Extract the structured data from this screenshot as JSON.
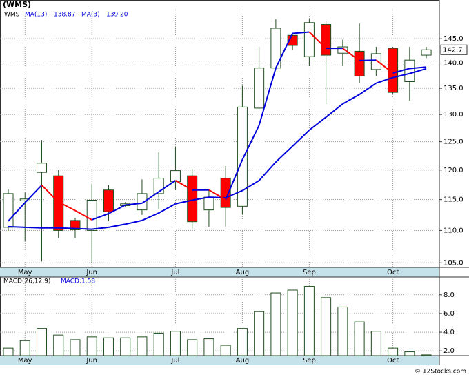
{
  "footer": "© 12Stocks.com",
  "chart_data": [
    {
      "type": "candlestick",
      "title": "(WMS)",
      "symbol": "WMS",
      "log_scale": true,
      "grid": true,
      "xlim": [
        -0.495,
        25.78
      ],
      "xticks": [
        {
          "value": 1,
          "label": "May"
        },
        {
          "value": 5,
          "label": "Jun"
        },
        {
          "value": 10,
          "label": "Jul"
        },
        {
          "value": 14,
          "label": "Aug"
        },
        {
          "value": 18,
          "label": "Sep"
        },
        {
          "value": 23,
          "label": "Oct"
        }
      ],
      "ylim": [
        104.3,
        151.2
      ],
      "yticks": [
        {
          "value": 105,
          "label": "105.0"
        },
        {
          "value": 110,
          "label": "110.0"
        },
        {
          "value": 115,
          "label": "115.0"
        },
        {
          "value": 120,
          "label": "120.0"
        },
        {
          "value": 125,
          "label": "125.0"
        },
        {
          "value": 130,
          "label": "130.0"
        },
        {
          "value": 135,
          "label": "135.0"
        },
        {
          "value": 140,
          "label": "140.0"
        },
        {
          "value": 145,
          "label": "145.0"
        }
      ],
      "up_color": "#ffffff",
      "down_color": "#ff0000",
      "edge_color": "#1f4f1f",
      "open": [
        110.5,
        114.8,
        119.6,
        119.0,
        111.6,
        110.0,
        116.6,
        114.0,
        113.3,
        116.0,
        118.0,
        119.0,
        113.3,
        118.6,
        113.9,
        131.2,
        139.0,
        145.7,
        141.3,
        148.0,
        142.0,
        142.4,
        138.7,
        143.0,
        136.3,
        141.6
      ],
      "high": [
        116.7,
        116.2,
        125.3,
        120.0,
        112.0,
        117.6,
        117.4,
        114.6,
        118.4,
        123.1,
        124.0,
        120.2,
        116.6,
        120.7,
        135.5,
        143.3,
        149.1,
        146.2,
        149.1,
        148.6,
        144.8,
        148.2,
        143.3,
        143.3,
        143.3,
        143.3
      ],
      "low": [
        110.0,
        108.3,
        105.2,
        108.8,
        108.8,
        105.0,
        111.5,
        113.7,
        112.5,
        113.4,
        116.6,
        110.3,
        110.6,
        110.6,
        112.6,
        131.0,
        139.0,
        142.7,
        139.4,
        131.9,
        139.4,
        136.1,
        137.4,
        133.9,
        132.6,
        141.0
      ],
      "close": [
        116.0,
        115.1,
        121.2,
        110.0,
        110.1,
        114.9,
        113.0,
        114.3,
        116.0,
        118.6,
        119.9,
        111.4,
        115.4,
        113.7,
        131.4,
        139.0,
        147.2,
        143.6,
        148.4,
        141.6,
        143.3,
        137.4,
        141.9,
        134.2,
        140.6,
        142.7
      ],
      "last_price": 142.7,
      "series": [
        {
          "name": "MA(13)",
          "value_label": "138.87",
          "color": "#0000dd",
          "values": [
            110.6,
            110.5,
            110.4,
            110.4,
            110.3,
            110.2,
            110.5,
            111.0,
            111.6,
            112.8,
            114.3,
            114.9,
            115.4,
            115.3,
            116.5,
            118.2,
            121.4,
            124.2,
            127.1,
            129.5,
            132.0,
            133.8,
            136.0,
            137.1,
            137.9,
            138.87
          ]
        },
        {
          "name": "MA(3)",
          "value_label": "139.20",
          "color": "#0000dd",
          "down_color": "#ff0000",
          "values": [
            111.5,
            114.5,
            117.4,
            114.6,
            113.2,
            111.7,
            112.7,
            114.1,
            114.4,
            116.3,
            118.2,
            116.6,
            116.6,
            115.0,
            121.8,
            128.0,
            139.0,
            146.1,
            146.4,
            143.0,
            143.0,
            140.5,
            140.6,
            138.0,
            138.9,
            139.2
          ]
        }
      ]
    },
    {
      "type": "bar",
      "title": "MACD(26,12,9)",
      "value_label": "MACD:1.58",
      "xlim": [
        -0.495,
        25.78
      ],
      "xticks": [
        {
          "value": 1,
          "label": "May"
        },
        {
          "value": 5,
          "label": "Jun"
        },
        {
          "value": 10,
          "label": "Jul"
        },
        {
          "value": 14,
          "label": "Aug"
        },
        {
          "value": 18,
          "label": "Sep"
        },
        {
          "value": 23,
          "label": "Oct"
        }
      ],
      "ylim": [
        1.5,
        9.9
      ],
      "yticks": [
        {
          "value": 2,
          "label": "2.0"
        },
        {
          "value": 4,
          "label": "4.0"
        },
        {
          "value": 6,
          "label": "6.0"
        },
        {
          "value": 8,
          "label": "8.0"
        }
      ],
      "grid": true,
      "color": "#ffffff",
      "edge_color": "#1f4f1f",
      "values": [
        2.3,
        3.1,
        4.4,
        3.7,
        3.2,
        3.5,
        3.4,
        3.4,
        3.5,
        3.9,
        4.1,
        3.2,
        3.3,
        2.6,
        4.4,
        6.2,
        8.2,
        8.5,
        8.9,
        7.7,
        6.7,
        5.1,
        4.1,
        2.3,
        1.9,
        1.58
      ]
    }
  ]
}
